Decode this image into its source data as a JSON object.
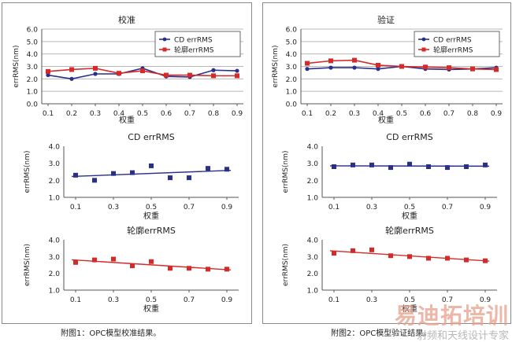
{
  "captions": {
    "left": "附图1：OPC模型校准结果。",
    "right": "附图2：OPC模型验证结果。"
  },
  "watermark": {
    "main": "易迪拓培训",
    "sub": "射频和天线设计专家"
  },
  "colors": {
    "cd": "#2a2f8a",
    "outline": "#d42a2a",
    "grid": "#b8b8b8"
  },
  "chart_data": [
    {
      "id": "left-top",
      "type": "line",
      "title": "校准",
      "xlabel": "权重",
      "ylabel": "errRMS(nm)",
      "x": [
        0.1,
        0.2,
        0.3,
        0.4,
        0.5,
        0.6,
        0.7,
        0.8,
        0.9
      ],
      "xticks": [
        "0.1",
        "0.2",
        "0.3",
        "0.4",
        "0.5",
        "0.6",
        "0.7",
        "0.8",
        "0.9"
      ],
      "ylim": [
        0,
        6
      ],
      "yticks": [
        "0.0",
        "1.0",
        "2.0",
        "3.0",
        "4.0",
        "5.0",
        "6.0"
      ],
      "grid": true,
      "legend": "top-right",
      "series": [
        {
          "name": "CD errRMS",
          "color": "#2a2f8a",
          "marker": "circle",
          "values": [
            2.3,
            2.0,
            2.4,
            2.4,
            2.85,
            2.2,
            2.15,
            2.7,
            2.65
          ]
        },
        {
          "name": "轮廓errRMS",
          "color": "#d42a2a",
          "marker": "square",
          "values": [
            2.6,
            2.75,
            2.85,
            2.45,
            2.65,
            2.3,
            2.3,
            2.25,
            2.25
          ]
        }
      ]
    },
    {
      "id": "left-mid",
      "type": "scatter",
      "title": "CD errRMS",
      "xlabel": "权重",
      "ylabel": "errRMS(nm)",
      "x": [
        0.1,
        0.2,
        0.3,
        0.4,
        0.5,
        0.6,
        0.7,
        0.8,
        0.9
      ],
      "xticks": [
        "0.1",
        "0.3",
        "0.5",
        "0.7",
        "0.9"
      ],
      "xtick_values": [
        0.1,
        0.3,
        0.5,
        0.7,
        0.9
      ],
      "ylim": [
        1,
        4
      ],
      "yticks": [
        "1.0",
        "2.0",
        "3.0",
        "4.0"
      ],
      "grid": false,
      "trendline": true,
      "series": [
        {
          "name": "",
          "color": "#2a2f8a",
          "marker": "square",
          "values": [
            2.3,
            2.0,
            2.4,
            2.45,
            2.85,
            2.15,
            2.15,
            2.7,
            2.65
          ]
        }
      ]
    },
    {
      "id": "left-bot",
      "type": "scatter",
      "title": "轮廓errRMS",
      "xlabel": "权重",
      "ylabel": "errRMS(nm)",
      "x": [
        0.1,
        0.2,
        0.3,
        0.4,
        0.5,
        0.6,
        0.7,
        0.8,
        0.9
      ],
      "xticks": [
        "0.1",
        "0.3",
        "0.5",
        "0.7",
        "0.9"
      ],
      "xtick_values": [
        0.1,
        0.3,
        0.5,
        0.7,
        0.9
      ],
      "ylim": [
        1,
        4
      ],
      "yticks": [
        "1.0",
        "2.0",
        "3.0",
        "4.0"
      ],
      "grid": false,
      "trendline": true,
      "series": [
        {
          "name": "",
          "color": "#d42a2a",
          "marker": "square",
          "values": [
            2.65,
            2.8,
            2.85,
            2.45,
            2.7,
            2.3,
            2.3,
            2.25,
            2.25
          ]
        }
      ]
    },
    {
      "id": "right-top",
      "type": "line",
      "title": "验证",
      "xlabel": "权重",
      "ylabel": "errRMS(nm)",
      "x": [
        0.1,
        0.2,
        0.3,
        0.4,
        0.5,
        0.6,
        0.7,
        0.8,
        0.9
      ],
      "xticks": [
        "0.1",
        "0.2",
        "0.3",
        "0.4",
        "0.5",
        "0.6",
        "0.7",
        "0.8",
        "0.9"
      ],
      "ylim": [
        0,
        6
      ],
      "yticks": [
        "0.0",
        "1.0",
        "2.0",
        "3.0",
        "4.0",
        "5.0",
        "6.0"
      ],
      "grid": true,
      "legend": "top-right",
      "series": [
        {
          "name": "CD errRMS",
          "color": "#2a2f8a",
          "marker": "circle",
          "values": [
            2.8,
            2.9,
            2.9,
            2.8,
            3.0,
            2.8,
            2.75,
            2.8,
            2.9
          ]
        },
        {
          "name": "轮廓errRMS",
          "color": "#d42a2a",
          "marker": "square",
          "values": [
            3.25,
            3.45,
            3.5,
            3.1,
            3.0,
            2.95,
            2.9,
            2.8,
            2.75
          ]
        }
      ]
    },
    {
      "id": "right-mid",
      "type": "scatter",
      "title": "CD errRMS",
      "xlabel": "权重",
      "ylabel": "errRMS(nm)",
      "x": [
        0.1,
        0.2,
        0.3,
        0.4,
        0.5,
        0.6,
        0.7,
        0.8,
        0.9
      ],
      "xticks": [
        "0.1",
        "0.3",
        "0.5",
        "0.7",
        "0.9"
      ],
      "xtick_values": [
        0.1,
        0.3,
        0.5,
        0.7,
        0.9
      ],
      "ylim": [
        1,
        4
      ],
      "yticks": [
        "1.0",
        "2.0",
        "3.0",
        "4.0"
      ],
      "grid": false,
      "trendline": true,
      "series": [
        {
          "name": "",
          "color": "#2a2f8a",
          "marker": "square",
          "values": [
            2.8,
            2.9,
            2.9,
            2.75,
            2.95,
            2.8,
            2.75,
            2.8,
            2.9
          ]
        }
      ]
    },
    {
      "id": "right-bot",
      "type": "scatter",
      "title": "轮廓errRMS",
      "xlabel": "权重",
      "ylabel": "errRMS(nm)",
      "x": [
        0.1,
        0.2,
        0.3,
        0.4,
        0.5,
        0.6,
        0.7,
        0.8,
        0.9
      ],
      "xticks": [
        "0.1",
        "0.3",
        "0.5",
        "0.7",
        "0.9"
      ],
      "xtick_values": [
        0.1,
        0.3,
        0.5,
        0.7,
        0.9
      ],
      "ylim": [
        1,
        4
      ],
      "yticks": [
        "1.0",
        "2.0",
        "3.0",
        "4.0"
      ],
      "grid": false,
      "trendline": true,
      "series": [
        {
          "name": "",
          "color": "#d42a2a",
          "marker": "square",
          "values": [
            3.2,
            3.35,
            3.4,
            3.05,
            3.0,
            2.9,
            2.9,
            2.8,
            2.75
          ]
        }
      ]
    }
  ]
}
